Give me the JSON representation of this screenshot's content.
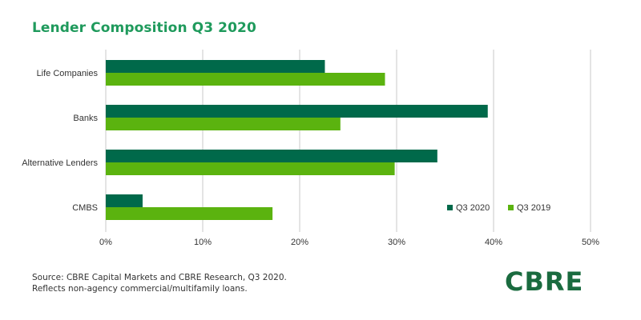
{
  "title": "Lender Composition Q3 2020",
  "source_lines": [
    "Source: CBRE Capital Markets and CBRE Research, Q3 2020.",
    "Reflects non-agency commercial/multifamily loans."
  ],
  "logo": "CBRE",
  "colors": {
    "title": "#1f9a5c",
    "q3_2020": "#00694a",
    "q3_2019": "#5bb30f",
    "grid": "#c8c8c8",
    "logo": "#1a6b3f"
  },
  "chart_data": {
    "type": "bar",
    "orientation": "horizontal",
    "title": "Lender Composition Q3 2020",
    "categories": [
      "Life Companies",
      "Banks",
      "Alternative Lenders",
      "CMBS"
    ],
    "series": [
      {
        "name": "Q3 2020",
        "values": [
          22.6,
          39.4,
          34.2,
          3.8
        ]
      },
      {
        "name": "Q3 2019",
        "values": [
          28.8,
          24.2,
          29.8,
          17.2
        ]
      }
    ],
    "xlabel": "",
    "ylabel": "",
    "xlim": [
      0,
      50
    ],
    "x_ticks": [
      "0%",
      "10%",
      "20%",
      "30%",
      "40%",
      "50%"
    ],
    "grid": true,
    "legend_position": "bottom-right"
  }
}
